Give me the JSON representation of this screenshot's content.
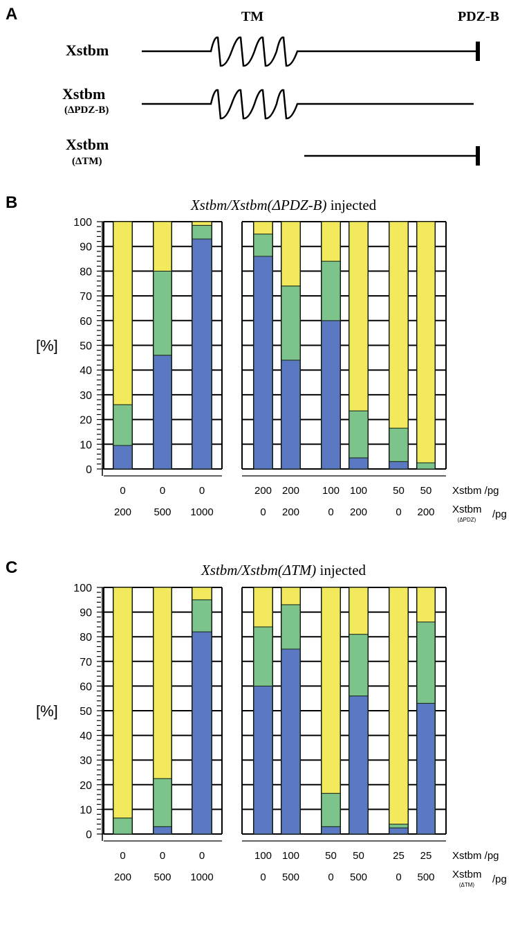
{
  "panel_a": {
    "label": "A",
    "tm_label": "TM",
    "pdz_label": "PDZ-B",
    "constructs": [
      {
        "name": "Xstbm",
        "sub": ""
      },
      {
        "name": "Xstbm",
        "sub": "(ΔPDZ-B)"
      },
      {
        "name": "Xstbm",
        "sub": "(ΔTM)"
      }
    ]
  },
  "colors": {
    "blue": "#5b78c2",
    "green": "#7dc48c",
    "yellow": "#f3e95c"
  },
  "chart_data": [
    {
      "type": "bar",
      "stacked": true,
      "panel_label": "B",
      "title_italic": "Xstbm/Xstbm(ΔPDZ-B)",
      "title_rest": " injected",
      "ylabel": "[%]",
      "ylim": [
        0,
        100
      ],
      "yticks": [
        "0",
        "10",
        "20",
        "30",
        "40",
        "50",
        "60",
        "70",
        "80",
        "90",
        "100"
      ],
      "grid": true,
      "row1_label": "Xstbm /pg",
      "row2_label_main": "Xstbm",
      "row2_label_sub": "(ΔPDZ)",
      "row2_label_unit": "/pg",
      "groups": [
        {
          "categories": [
            [
              "0",
              "200"
            ],
            [
              "0",
              "500"
            ],
            [
              "0",
              "1000"
            ]
          ],
          "blue": [
            9.5,
            46,
            93
          ],
          "green": [
            16.5,
            34,
            5.5
          ],
          "yellow": [
            74,
            20,
            1.5
          ]
        },
        {
          "categories": [
            [
              "200",
              "0"
            ],
            [
              "200",
              "200"
            ],
            [
              "100",
              "0"
            ],
            [
              "100",
              "200"
            ],
            [
              "50",
              "0"
            ],
            [
              "50",
              "200"
            ]
          ],
          "blue": [
            86,
            44,
            60,
            4.5,
            3,
            0
          ],
          "green": [
            9,
            30,
            24,
            19,
            13.5,
            2.5
          ],
          "yellow": [
            5,
            26,
            16,
            76.5,
            83.5,
            97.5
          ]
        }
      ]
    },
    {
      "type": "bar",
      "stacked": true,
      "panel_label": "C",
      "title_italic": "Xstbm/Xstbm(ΔTM)",
      "title_rest": " injected",
      "ylabel": "[%]",
      "ylim": [
        0,
        100
      ],
      "yticks": [
        "0",
        "10",
        "20",
        "30",
        "40",
        "50",
        "60",
        "70",
        "80",
        "90",
        "100"
      ],
      "grid": true,
      "row1_label": "Xstbm /pg",
      "row2_label_main": "Xstbm",
      "row2_label_sub": "(ΔTM)",
      "row2_label_unit": "/pg",
      "groups": [
        {
          "categories": [
            [
              "0",
              "200"
            ],
            [
              "0",
              "500"
            ],
            [
              "0",
              "1000"
            ]
          ],
          "blue": [
            0,
            3,
            82
          ],
          "green": [
            6.5,
            19.5,
            13
          ],
          "yellow": [
            93.5,
            77.5,
            5
          ]
        },
        {
          "categories": [
            [
              "100",
              "0"
            ],
            [
              "100",
              "500"
            ],
            [
              "50",
              "0"
            ],
            [
              "50",
              "500"
            ],
            [
              "25",
              "0"
            ],
            [
              "25",
              "500"
            ]
          ],
          "blue": [
            60,
            75,
            3,
            56,
            2.5,
            53
          ],
          "green": [
            24,
            18,
            13.5,
            25,
            1.5,
            33
          ],
          "yellow": [
            16,
            7,
            83.5,
            19,
            96,
            14
          ]
        }
      ]
    }
  ]
}
